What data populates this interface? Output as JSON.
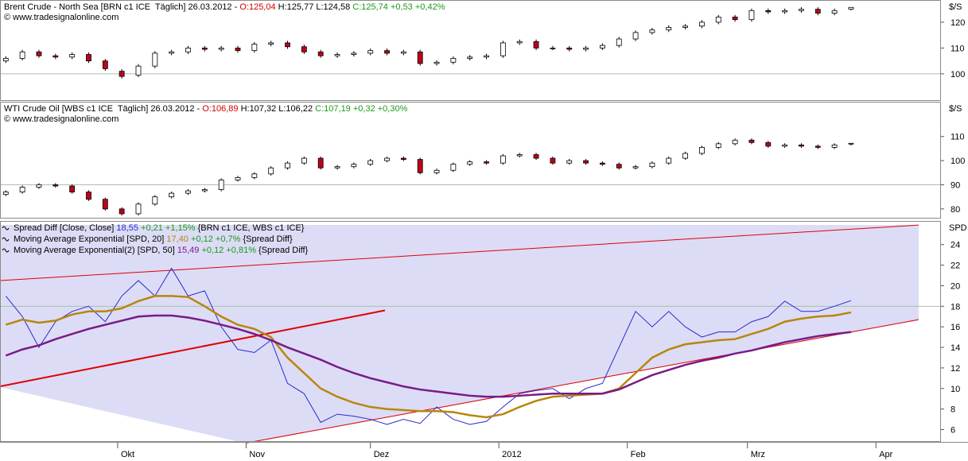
{
  "chart_data": [
    {
      "type": "candlestick",
      "label": "Brent Crude - North Sea [BRN c1 ICE  Täglich] 26.03.2012 -",
      "open_label": "O:125,04",
      "hl_label": "H:125,77 L:124,58",
      "close_label": "C:125,74 +0,53 +0,42%",
      "source": "© www.tradesignalonline.com",
      "unit": "$/S",
      "up_color": "#ffffff",
      "down_color": "#c0001a",
      "xlim": [
        -28.4,
        198.7
      ],
      "ylim": [
        89.5,
        128.6
      ],
      "yticks": [
        100,
        110,
        120
      ],
      "hlines": [
        100
      ],
      "x": [
        -27,
        -23,
        -19,
        -15,
        -11,
        -7,
        -3,
        1,
        5,
        9,
        13,
        17,
        21,
        25,
        29,
        33,
        37,
        41,
        45,
        49,
        53,
        57,
        61,
        65,
        69,
        73,
        77,
        81,
        85,
        89,
        93,
        97,
        101,
        105,
        109,
        113,
        117,
        121,
        125,
        129,
        133,
        137,
        141,
        145,
        149,
        153,
        157,
        161,
        165,
        169,
        173,
        177
      ],
      "open": [
        105,
        106,
        108.5,
        107,
        106.5,
        107.5,
        105,
        101,
        99.5,
        103,
        108,
        108.5,
        110,
        109.5,
        110,
        109,
        111.5,
        112,
        110.5,
        108.5,
        107,
        107.5,
        108,
        109,
        108,
        108.5,
        104,
        104.5,
        106,
        106.5,
        107,
        112,
        112.5,
        110,
        110,
        109.5,
        110,
        111,
        113.5,
        116,
        117,
        118,
        118.5,
        120,
        122,
        121,
        124.5,
        124,
        124.5,
        125,
        123.5,
        125.04
      ],
      "high": [
        106.8,
        109.3,
        109.3,
        107.8,
        108.3,
        108.3,
        105.8,
        101.8,
        103.8,
        108.8,
        109.3,
        110.8,
        110.8,
        110.8,
        110.8,
        112.3,
        112.8,
        112.8,
        111.3,
        109.3,
        108.3,
        108.8,
        109.8,
        109.8,
        109.3,
        109.3,
        105.3,
        106.8,
        107.3,
        107.8,
        112.8,
        113.3,
        113.3,
        110.8,
        110.8,
        110.8,
        111.8,
        114.3,
        116.8,
        117.8,
        118.8,
        119.3,
        120.8,
        122.8,
        122.8,
        125.3,
        125.3,
        125.3,
        125.8,
        125.8,
        125.3,
        125.77
      ],
      "low": [
        104.2,
        105.2,
        106.2,
        105.7,
        105.7,
        104.2,
        101.2,
        98.2,
        98.7,
        102.2,
        107.2,
        107.7,
        108.7,
        108.7,
        108.2,
        108.2,
        110.7,
        109.7,
        107.7,
        106.2,
        106.2,
        106.7,
        107.2,
        107.2,
        107.2,
        103.2,
        103.2,
        103.7,
        105.2,
        105.7,
        106.2,
        111.2,
        109.2,
        109.2,
        108.7,
        108.7,
        109.2,
        110.2,
        112.7,
        115.2,
        116.2,
        117.2,
        117.7,
        119.2,
        120.2,
        120.2,
        123.2,
        123.2,
        123.7,
        122.7,
        122.7,
        124.58
      ],
      "close": [
        106,
        108.5,
        107,
        106.5,
        107.5,
        105,
        102,
        99,
        103,
        108,
        108.5,
        110,
        109.5,
        110,
        109,
        111.5,
        112,
        110.5,
        108.5,
        107,
        107.5,
        108,
        109,
        108,
        108.5,
        104,
        104.5,
        106,
        106.5,
        107,
        112,
        112.5,
        110,
        110,
        109.5,
        110,
        111,
        113.5,
        116,
        117,
        118,
        118.5,
        120,
        122,
        121,
        124.5,
        124,
        124.5,
        125,
        123.5,
        124.5,
        125.74
      ]
    },
    {
      "type": "candlestick",
      "label": "WTI Crude Oil [WBS c1 ICE  Täglich] 26.03.2012 -",
      "open_label": "O:106,89",
      "hl_label": "H:107,32 L:106,22",
      "close_label": "C:107,19 +0,32 +0,30%",
      "source": "© www.tradesignalonline.com",
      "unit": "$/S",
      "up_color": "#ffffff",
      "down_color": "#c0001a",
      "xlim": [
        -28.4,
        198.7
      ],
      "ylim": [
        76,
        124.4
      ],
      "yticks": [
        80,
        90,
        100,
        110
      ],
      "hlines": [
        90
      ],
      "x": [
        -27,
        -23,
        -19,
        -15,
        -11,
        -7,
        -3,
        1,
        5,
        9,
        13,
        17,
        21,
        25,
        29,
        33,
        37,
        41,
        45,
        49,
        53,
        57,
        61,
        65,
        69,
        73,
        77,
        81,
        85,
        89,
        93,
        97,
        101,
        105,
        109,
        113,
        117,
        121,
        125,
        129,
        133,
        137,
        141,
        145,
        149,
        153,
        157,
        161,
        165,
        169,
        173,
        177
      ],
      "open": [
        86,
        87,
        89,
        90,
        89.5,
        87,
        84,
        80,
        78,
        82,
        85,
        86.5,
        87.5,
        88,
        92,
        93,
        94.5,
        97,
        99,
        101,
        97,
        97.5,
        98.5,
        100,
        101,
        100.5,
        95,
        96,
        98.5,
        99.5,
        99,
        102,
        102.5,
        101,
        99,
        100,
        99,
        98.5,
        97,
        97.5,
        99,
        101,
        103,
        105.5,
        107,
        108.5,
        107.5,
        106,
        106.5,
        106,
        105.5,
        106.89
      ],
      "high": [
        87.7,
        89.7,
        90.7,
        90.7,
        90.2,
        87.7,
        84.7,
        80.7,
        82.7,
        85.7,
        87.2,
        88.2,
        88.7,
        92.7,
        93.7,
        95.2,
        97.7,
        99.7,
        101.7,
        101.7,
        98.2,
        99.2,
        100.7,
        101.7,
        101.7,
        101.2,
        96.7,
        99.2,
        100.2,
        100.2,
        102.7,
        103.2,
        103.2,
        101.7,
        100.7,
        100.7,
        99.7,
        99.2,
        98.2,
        99.7,
        101.7,
        103.7,
        106.2,
        107.7,
        109.2,
        109.2,
        108.2,
        107.2,
        107.2,
        106.7,
        107.2,
        107.32
      ],
      "low": [
        85.3,
        86.3,
        88.3,
        88.8,
        86.3,
        83.3,
        79.3,
        77.3,
        77.3,
        81.3,
        84.3,
        85.8,
        86.8,
        87.3,
        91.3,
        92.3,
        93.8,
        96.3,
        98.3,
        96.3,
        96.3,
        96.8,
        97.8,
        99.3,
        99.8,
        94.3,
        94.3,
        95.3,
        97.8,
        98.3,
        98.3,
        101.3,
        100.3,
        98.3,
        98.3,
        98.3,
        97.8,
        96.3,
        96.3,
        96.8,
        98.3,
        100.3,
        102.3,
        104.8,
        106.3,
        106.8,
        105.3,
        105.3,
        105.3,
        104.8,
        104.8,
        106.22
      ],
      "close": [
        87,
        89,
        90,
        89.5,
        87,
        84,
        80,
        78,
        82,
        85,
        86.5,
        87.5,
        88,
        92,
        93,
        94.5,
        97,
        99,
        101,
        97,
        97.5,
        98.5,
        100,
        101,
        100.5,
        95,
        96,
        98.5,
        99.5,
        99,
        102,
        102.5,
        101,
        99,
        100,
        99,
        98.5,
        97,
        97.5,
        99,
        101,
        103,
        105.5,
        107,
        108.5,
        107.5,
        106,
        106.5,
        106,
        105.5,
        106.5,
        107.19
      ]
    },
    {
      "type": "line",
      "unit": "SPD",
      "xlim": [
        -28.4,
        198.7
      ],
      "ylim": [
        4.8,
        26.3
      ],
      "yticks": [
        6,
        8,
        10,
        12,
        14,
        16,
        18,
        20,
        22,
        24
      ],
      "hlines": [
        18
      ],
      "xticks": [
        {
          "value": 0,
          "label": "Okt"
        },
        {
          "value": 31,
          "label": "Nov"
        },
        {
          "value": 61,
          "label": "Dez"
        },
        {
          "value": 92,
          "label": "2012"
        },
        {
          "value": 123,
          "label": "Feb"
        },
        {
          "value": 152,
          "label": "Mrz"
        },
        {
          "value": 183,
          "label": "Apr"
        }
      ],
      "trendlines": [
        {
          "x": [
            -28.4,
            193.3
          ],
          "values": [
            20.5,
            25.9
          ],
          "color": "#e00000"
        },
        {
          "x": [
            -28.4,
            64.5
          ],
          "values": [
            10.2,
            17.6
          ],
          "color": "#e00000"
        },
        {
          "x": [
            31.1,
            193.3
          ],
          "values": [
            4.7,
            16.7
          ],
          "color": "#e00000"
        }
      ],
      "x": [
        -27,
        -23,
        -19,
        -15,
        -11,
        -7,
        -3,
        1,
        5,
        9,
        13,
        17,
        21,
        25,
        29,
        33,
        37,
        41,
        45,
        49,
        53,
        57,
        61,
        65,
        69,
        73,
        77,
        81,
        85,
        89,
        93,
        97,
        101,
        105,
        109,
        113,
        117,
        121,
        125,
        129,
        133,
        137,
        141,
        145,
        149,
        153,
        157,
        161,
        165,
        169,
        173,
        177
      ],
      "change_color": "#1a9a1a",
      "series": [
        {
          "name": "Spread Diff [Close, Close]",
          "last_label": "18,55",
          "change_label": "+0,21 +1,15%",
          "inputs_label": "{BRN c1 ICE, WBS c1 ICE}",
          "color": "#2a2ad0",
          "values": [
            19,
            17,
            14,
            16.5,
            17.5,
            18,
            16.5,
            19,
            20.5,
            19,
            21.7,
            19,
            19.5,
            16,
            13.8,
            13.5,
            14.7,
            10.5,
            9.5,
            6.7,
            7.5,
            7.3,
            7,
            6.5,
            7,
            6.6,
            8.2,
            7,
            6.5,
            6.8,
            8.2,
            9.5,
            9.8,
            10,
            9,
            10,
            10.5,
            14,
            17.5,
            16,
            17.5,
            16,
            15,
            15.5,
            15.5,
            16.5,
            17,
            18.5,
            17.5,
            17.5,
            18,
            18.55
          ]
        },
        {
          "name": "Moving Average Exponential [SPD, 20]",
          "last_label": "17,40",
          "change_label": "+0,12 +0,7%",
          "inputs_label": "{Spread Diff}",
          "color": "#b8860b",
          "values": [
            16.2,
            16.7,
            16.4,
            16.6,
            17.2,
            17.5,
            17.5,
            17.8,
            18.5,
            19,
            19,
            18.9,
            18,
            17,
            16.2,
            15.8,
            15,
            13,
            11.5,
            10,
            9.2,
            8.6,
            8.2,
            8,
            7.9,
            7.8,
            7.8,
            7.7,
            7.4,
            7.2,
            7.5,
            8.2,
            8.8,
            9.2,
            9.3,
            9.4,
            9.5,
            10,
            11.5,
            13,
            13.8,
            14.3,
            14.5,
            14.7,
            14.8,
            15.3,
            15.8,
            16.5,
            16.8,
            17,
            17.1,
            17.4
          ]
        },
        {
          "name": "Moving Average Exponential(2) [SPD, 50]",
          "last_label": "15,49",
          "change_label": "+0,12 +0,81%",
          "inputs_label": "{Spread Diff}",
          "color": "#7a1a86",
          "values": [
            13.2,
            13.8,
            14.2,
            14.8,
            15.3,
            15.8,
            16.2,
            16.6,
            17,
            17.1,
            17.1,
            16.9,
            16.6,
            16.2,
            15.8,
            15.3,
            14.7,
            14,
            13.4,
            12.8,
            12.1,
            11.5,
            11,
            10.6,
            10.2,
            9.9,
            9.7,
            9.5,
            9.3,
            9.2,
            9.2,
            9.3,
            9.4,
            9.5,
            9.5,
            9.5,
            9.5,
            9.9,
            10.6,
            11.3,
            11.8,
            12.3,
            12.7,
            13,
            13.4,
            13.7,
            14.1,
            14.5,
            14.8,
            15.1,
            15.3,
            15.49
          ]
        }
      ]
    }
  ]
}
